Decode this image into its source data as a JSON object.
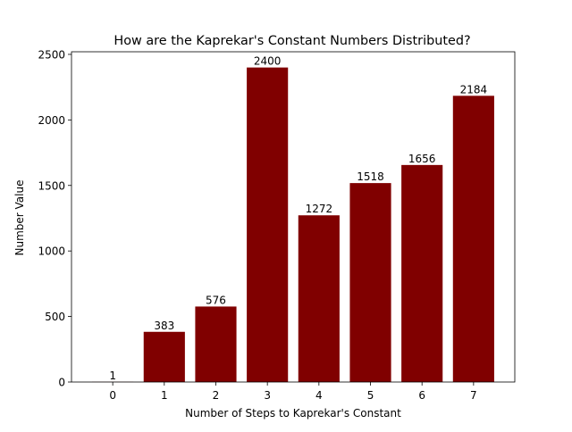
{
  "chart_data": {
    "type": "bar",
    "title": "How are the Kaprekar's Constant Numbers Distributed?",
    "xlabel": "Number of Steps to Kaprekar's Constant",
    "ylabel": "Number Value",
    "categories": [
      "0",
      "1",
      "2",
      "3",
      "4",
      "5",
      "6",
      "7"
    ],
    "values": [
      1,
      383,
      576,
      2400,
      1272,
      1518,
      1656,
      2184
    ],
    "data_labels": [
      "1",
      "383",
      "576",
      "2400",
      "1272",
      "1518",
      "1656",
      "2184"
    ],
    "yticks": [
      0,
      500,
      1000,
      1500,
      2000,
      2500
    ],
    "ytick_labels": [
      "0",
      "500",
      "1000",
      "1500",
      "2000",
      "2500"
    ],
    "ylim": [
      0,
      2520
    ],
    "xlim": [
      -0.8,
      7.8
    ],
    "bar_color": "#800000",
    "grid": false,
    "legend": "none"
  }
}
